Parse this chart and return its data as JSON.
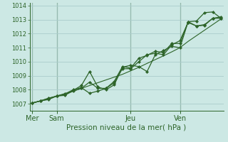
{
  "background_color": "#cce8e4",
  "grid_color": "#aacccc",
  "line_color": "#2d6429",
  "xlabel": "Pression niveau de la mer( hPa )",
  "ylim": [
    1006.5,
    1014.2
  ],
  "yticks": [
    1007,
    1008,
    1009,
    1010,
    1011,
    1012,
    1013,
    1014
  ],
  "day_labels": [
    "Mer",
    "Sam",
    "Jeu",
    "Ven"
  ],
  "day_positions": [
    0,
    3,
    12,
    18
  ],
  "total_points": 24,
  "series1": [
    1007.05,
    1007.2,
    1007.3,
    1007.55,
    1007.6,
    1007.95,
    1008.3,
    1009.3,
    1008.2,
    1008.0,
    1008.35,
    1009.6,
    1009.75,
    1009.65,
    1009.3,
    1010.5,
    1010.8,
    1011.1,
    1011.0,
    1012.85,
    1012.9,
    1013.5,
    1013.55,
    1013.1
  ],
  "series2": [
    1007.05,
    1007.2,
    1007.4,
    1007.55,
    1007.7,
    1008.0,
    1008.15,
    1007.75,
    1007.9,
    1008.1,
    1008.6,
    1009.65,
    1009.55,
    1010.25,
    1010.45,
    1010.75,
    1010.65,
    1011.3,
    1011.3,
    1012.85,
    1012.55,
    1012.65,
    1013.1,
    1013.1
  ],
  "series3": [
    1007.05,
    1007.2,
    1007.35,
    1007.55,
    1007.65,
    1007.9,
    1008.1,
    1008.55,
    1008.1,
    1008.1,
    1008.5,
    1009.5,
    1009.5,
    1010.0,
    1010.5,
    1010.6,
    1010.5,
    1011.2,
    1011.5,
    1012.8,
    1012.55,
    1012.6,
    1013.1,
    1013.2
  ],
  "trend": [
    1007.05,
    1007.2,
    1007.38,
    1007.55,
    1007.73,
    1007.9,
    1008.1,
    1008.3,
    1008.5,
    1008.7,
    1008.9,
    1009.1,
    1009.35,
    1009.6,
    1009.88,
    1010.15,
    1010.42,
    1010.7,
    1011.0,
    1011.45,
    1011.85,
    1012.25,
    1012.65,
    1013.05
  ]
}
